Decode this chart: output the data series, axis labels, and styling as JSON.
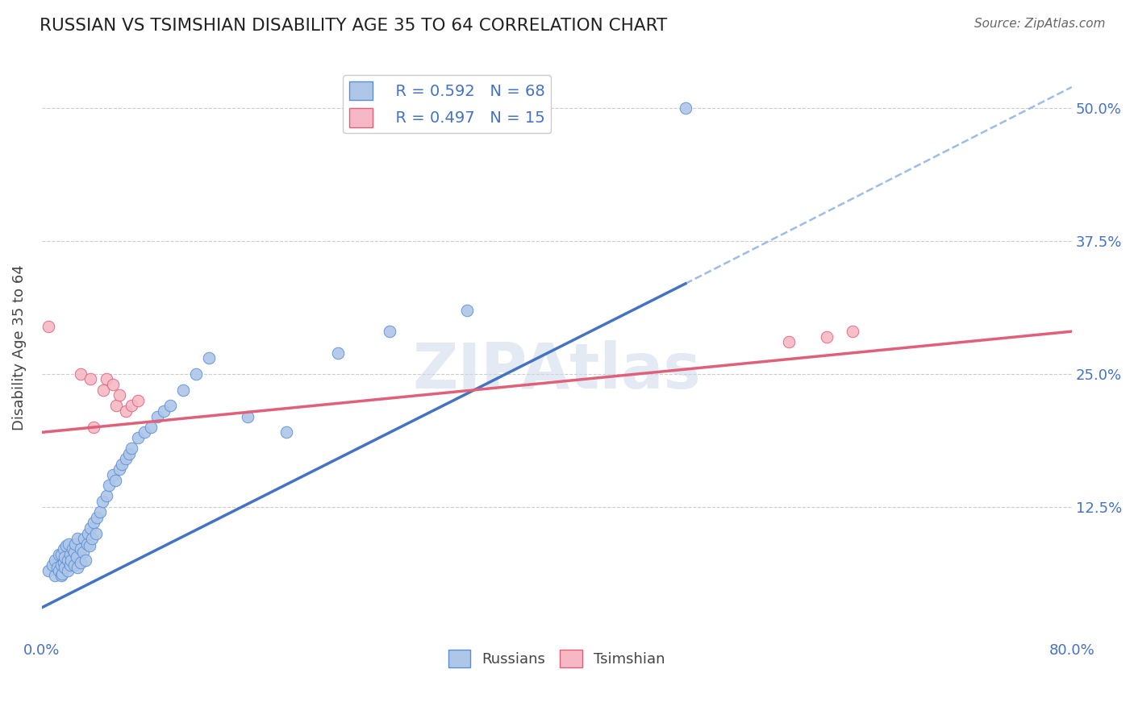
{
  "title": "RUSSIAN VS TSIMSHIAN DISABILITY AGE 35 TO 64 CORRELATION CHART",
  "source": "Source: ZipAtlas.com",
  "ylabel": "Disability Age 35 to 64",
  "xlim": [
    0.0,
    0.8
  ],
  "ylim": [
    0.0,
    0.55
  ],
  "ytick_positions": [
    0.125,
    0.25,
    0.375,
    0.5
  ],
  "ytick_labels": [
    "12.5%",
    "25.0%",
    "37.5%",
    "50.0%"
  ],
  "legend_r_russian": "R = 0.592",
  "legend_n_russian": "N = 68",
  "legend_r_tsimshian": "R = 0.497",
  "legend_n_tsimshian": "N = 15",
  "russian_color": "#aec6e8",
  "russian_edge_color": "#5b8ed6",
  "tsimshian_color": "#f5b8c4",
  "tsimshian_edge_color": "#e0607a",
  "russian_line_color": "#4472c4",
  "tsimshian_line_color": "#e0607a",
  "dashed_line_color": "#9dbde8",
  "watermark": "ZIPAtlas",
  "russians_x": [
    0.005,
    0.008,
    0.01,
    0.01,
    0.012,
    0.013,
    0.013,
    0.015,
    0.015,
    0.015,
    0.016,
    0.017,
    0.017,
    0.018,
    0.018,
    0.019,
    0.02,
    0.02,
    0.021,
    0.022,
    0.022,
    0.023,
    0.024,
    0.025,
    0.025,
    0.026,
    0.027,
    0.028,
    0.028,
    0.03,
    0.03,
    0.032,
    0.033,
    0.034,
    0.035,
    0.036,
    0.037,
    0.038,
    0.039,
    0.04,
    0.042,
    0.043,
    0.045,
    0.047,
    0.05,
    0.052,
    0.055,
    0.057,
    0.06,
    0.062,
    0.065,
    0.068,
    0.07,
    0.075,
    0.08,
    0.085,
    0.09,
    0.095,
    0.1,
    0.11,
    0.12,
    0.13,
    0.16,
    0.19,
    0.23,
    0.27,
    0.33,
    0.5
  ],
  "russians_y": [
    0.065,
    0.07,
    0.06,
    0.075,
    0.068,
    0.065,
    0.08,
    0.06,
    0.07,
    0.08,
    0.062,
    0.072,
    0.085,
    0.068,
    0.078,
    0.088,
    0.065,
    0.075,
    0.09,
    0.07,
    0.08,
    0.075,
    0.085,
    0.07,
    0.082,
    0.09,
    0.078,
    0.068,
    0.095,
    0.072,
    0.085,
    0.082,
    0.095,
    0.075,
    0.09,
    0.1,
    0.088,
    0.105,
    0.095,
    0.11,
    0.1,
    0.115,
    0.12,
    0.13,
    0.135,
    0.145,
    0.155,
    0.15,
    0.16,
    0.165,
    0.17,
    0.175,
    0.18,
    0.19,
    0.195,
    0.2,
    0.21,
    0.215,
    0.22,
    0.235,
    0.25,
    0.265,
    0.21,
    0.195,
    0.27,
    0.29,
    0.31,
    0.5
  ],
  "tsimshian_x": [
    0.005,
    0.03,
    0.038,
    0.04,
    0.048,
    0.05,
    0.055,
    0.058,
    0.06,
    0.065,
    0.07,
    0.075,
    0.58,
    0.61,
    0.63
  ],
  "tsimshian_y": [
    0.295,
    0.25,
    0.245,
    0.2,
    0.235,
    0.245,
    0.24,
    0.22,
    0.23,
    0.215,
    0.22,
    0.225,
    0.28,
    0.285,
    0.29
  ],
  "russian_line_x0": 0.0,
  "russian_line_y0": 0.03,
  "russian_line_x1": 0.5,
  "russian_line_y1": 0.335,
  "tsimshian_line_x0": 0.0,
  "tsimshian_line_y0": 0.195,
  "tsimshian_line_x1": 0.8,
  "tsimshian_line_y1": 0.29,
  "dashed_line_x0": 0.5,
  "dashed_line_y0": 0.335,
  "dashed_line_x1": 0.8,
  "dashed_line_y1": 0.52
}
